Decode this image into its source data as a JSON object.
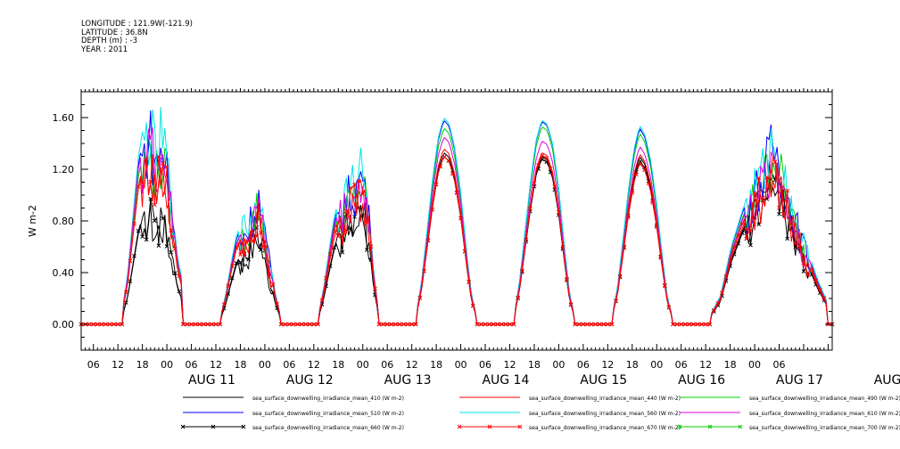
{
  "header": {
    "longitude": "LONGITUDE : 121.9W(-121.9)",
    "latitude": "LATITUDE : 36.8N",
    "depth": "DEPTH (m) : -3",
    "year": "YEAR : 2011"
  },
  "chart_data": {
    "type": "line",
    "ylabel": "W m-2",
    "ylim": [
      -0.2,
      1.8
    ],
    "yticks": [
      0.0,
      0.4,
      0.8,
      1.2,
      1.6
    ],
    "ytick_labels": [
      "0.00",
      "0.40",
      "0.80",
      "1.20",
      "1.60"
    ],
    "x_unit": "hours since 2011-08-10 00:00 UTC (derived from axis)",
    "xlim": [
      3,
      187
    ],
    "hour_ticks": [
      "06",
      "12",
      "18",
      "00",
      "06",
      "12",
      "18",
      "00",
      "06",
      "12",
      "18",
      "00",
      "06",
      "12",
      "18",
      "00",
      "06",
      "12",
      "18",
      "00",
      "06",
      "12",
      "18",
      "00",
      "06",
      "12",
      "18",
      "00",
      "06"
    ],
    "day_labels": [
      "AUG 11",
      "AUG 12",
      "AUG 13",
      "AUG 14",
      "AUG 15",
      "AUG 16",
      "AUG 17",
      "AUG 18"
    ],
    "grid": false,
    "legend_placement": "bottom",
    "days": [
      {
        "sunrise": 13,
        "sunset": 28,
        "shape": [
          0.06,
          0.22,
          0.5,
          0.78,
          0.9,
          1.0,
          0.82,
          0.92,
          0.85,
          0.55,
          0.3,
          0.18
        ],
        "noise": true
      },
      {
        "sunrise": 37,
        "sunset": 52,
        "shape": [
          0.04,
          0.2,
          0.42,
          0.62,
          0.7,
          0.76,
          0.88,
          1.0,
          0.72,
          0.45,
          0.2,
          0.05
        ],
        "noise": true
      },
      {
        "sunrise": 61,
        "sunset": 76,
        "shape": [
          0.04,
          0.2,
          0.42,
          0.62,
          0.74,
          0.8,
          0.86,
          0.9,
          1.0,
          0.75,
          0.3,
          0.05
        ],
        "noise": true
      },
      {
        "sunrise": 85,
        "sunset": 100,
        "shape": [
          0.04,
          0.2,
          0.45,
          0.7,
          0.9,
          1.0,
          0.97,
          0.85,
          0.65,
          0.38,
          0.14,
          0.03
        ],
        "noise": false
      },
      {
        "sunrise": 109,
        "sunset": 124,
        "shape": [
          0.04,
          0.2,
          0.45,
          0.7,
          0.9,
          1.0,
          0.98,
          0.88,
          0.68,
          0.4,
          0.15,
          0.03
        ],
        "noise": false
      },
      {
        "sunrise": 133,
        "sunset": 148,
        "shape": [
          0.04,
          0.18,
          0.42,
          0.68,
          0.88,
          1.0,
          0.95,
          0.82,
          0.62,
          0.36,
          0.13,
          0.03
        ],
        "noise": false
      },
      {
        "sunrise": 157,
        "sunset": 186,
        "shape": [
          0.04,
          0.14,
          0.38,
          0.55,
          0.7,
          0.82,
          1.0,
          0.75,
          0.55,
          0.38,
          0.22,
          0.1
        ],
        "noise": true
      }
    ],
    "series": [
      {
        "name": "sea_surface_downwelling_irradiance_mean_410 (W m-2)",
        "color": "#000000",
        "marker": "none",
        "peaks": [
          0.92,
          0.75,
          0.95,
          1.33,
          1.3,
          1.3,
          1.3
        ]
      },
      {
        "name": "sea_surface_downwelling_irradiance_mean_440 (W m-2)",
        "color": "#ff0000",
        "marker": "none",
        "peaks": [
          1.38,
          0.95,
          1.1,
          1.36,
          1.33,
          1.32,
          1.34
        ]
      },
      {
        "name": "sea_surface_downwelling_irradiance_mean_490 (W m-2)",
        "color": "#00cc00",
        "marker": "none",
        "peaks": [
          1.5,
          1.03,
          1.22,
          1.52,
          1.53,
          1.48,
          1.48
        ]
      },
      {
        "name": "sea_surface_downwelling_irradiance_mean_510 (W m-2)",
        "color": "#0000ff",
        "marker": "none",
        "peaks": [
          1.62,
          1.08,
          1.3,
          1.58,
          1.57,
          1.52,
          1.55
        ]
      },
      {
        "name": "sea_surface_downwelling_irradiance_mean_560 (W m-2)",
        "color": "#00e5e5",
        "marker": "none",
        "peaks": [
          1.7,
          1.12,
          1.36,
          1.6,
          1.58,
          1.54,
          1.58
        ]
      },
      {
        "name": "sea_surface_downwelling_irradiance_mean_610 (W m-2)",
        "color": "#e000e0",
        "marker": "none",
        "peaks": [
          1.58,
          1.02,
          1.25,
          1.45,
          1.42,
          1.38,
          1.45
        ]
      },
      {
        "name": "sea_surface_downwelling_irradiance_mean_660 (W m-2)",
        "color": "#000000",
        "marker": "x",
        "peaks": [
          0.95,
          0.78,
          0.98,
          1.3,
          1.28,
          1.27,
          1.27
        ]
      },
      {
        "name": "sea_surface_downwelling_irradiance_mean_670 (W m-2)",
        "color": "#ff0000",
        "marker": "x",
        "peaks": [
          1.4,
          0.98,
          1.18,
          1.3,
          1.31,
          1.25,
          1.4
        ]
      },
      {
        "name": "sea_surface_downwelling_irradiance_mean_700 (W m-2) No Valid Data",
        "color": "#00cc00",
        "marker": "x",
        "peaks": null
      }
    ]
  }
}
